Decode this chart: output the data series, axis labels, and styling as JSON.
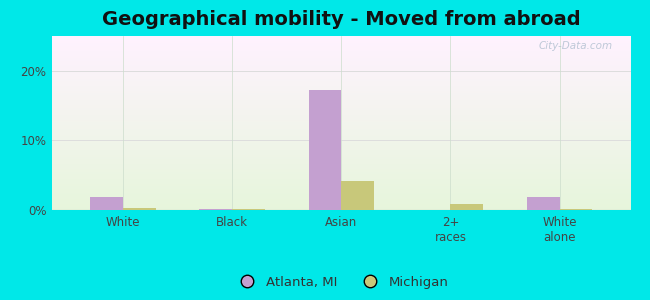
{
  "title": "Geographical mobility - Moved from abroad",
  "categories": [
    "White",
    "Black",
    "Asian",
    "2+\nraces",
    "White\nalone"
  ],
  "atlanta_values": [
    1.8,
    0.08,
    17.2,
    0.0,
    1.8
  ],
  "michigan_values": [
    0.25,
    0.08,
    4.1,
    0.9,
    0.18
  ],
  "atlanta_color": "#c4a0d0",
  "michigan_color": "#c8c87a",
  "bg_outer": "#00e8e8",
  "ylim": [
    0,
    25
  ],
  "yticks": [
    0,
    10,
    20
  ],
  "ytick_labels": [
    "0%",
    "10%",
    "20%"
  ],
  "legend_atlanta": "Atlanta, MI",
  "legend_michigan": "Michigan",
  "bar_width": 0.3,
  "title_fontsize": 14,
  "tick_fontsize": 8.5,
  "legend_fontsize": 9.5,
  "watermark": "City-Data.com"
}
